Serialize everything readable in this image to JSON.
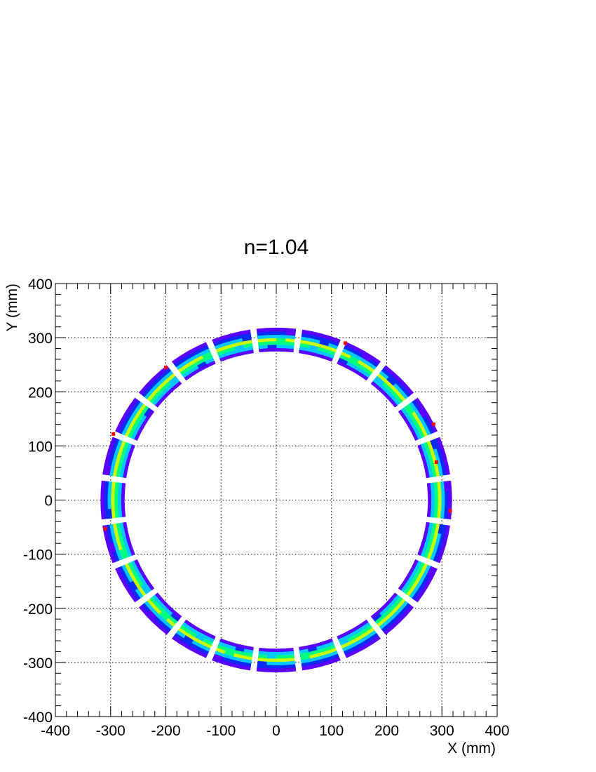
{
  "chart_data": {
    "type": "heatmap",
    "title": "n=1.04",
    "xlabel": "X (mm)",
    "ylabel": "Y (mm)",
    "xlim": [
      -400,
      400
    ],
    "ylim": [
      -400,
      400
    ],
    "xticks": [
      -400,
      -300,
      -200,
      -100,
      0,
      100,
      200,
      300,
      400
    ],
    "yticks": [
      -400,
      -300,
      -200,
      -100,
      0,
      100,
      200,
      300,
      400
    ],
    "grid": true,
    "ring": {
      "module_count": 24,
      "module_radial_range_mm": [
        275,
        318
      ],
      "hit_radius_mm": 295,
      "colorscale": [
        "#5a00ff",
        "#0b2cf0",
        "#00c8ff",
        "#00ff80",
        "#c8ff00",
        "#ff0000"
      ],
      "hot_pixels_mm": [
        [
          -200,
          245
        ],
        [
          -295,
          122
        ],
        [
          -310,
          -53
        ],
        [
          125,
          290
        ],
        [
          285,
          140
        ],
        [
          290,
          70
        ],
        [
          315,
          -20
        ]
      ]
    }
  }
}
